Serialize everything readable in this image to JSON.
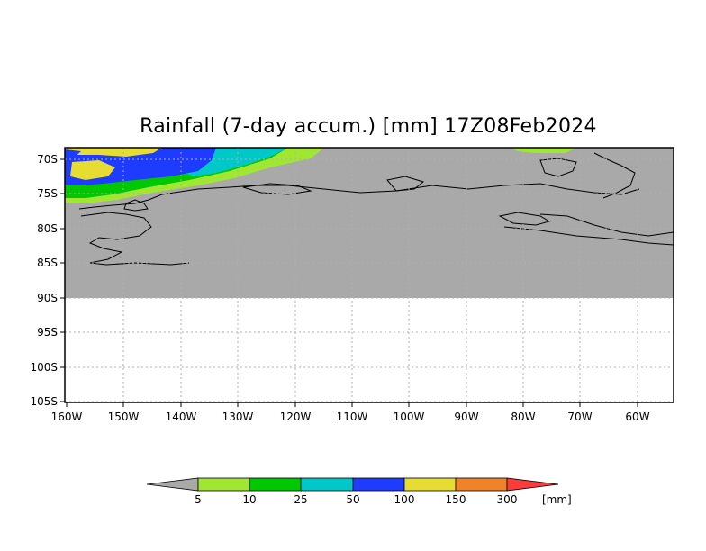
{
  "title": "Rainfall (7-day accum.) [mm] 17Z08Feb2024",
  "map": {
    "lat_labels": [
      "70S",
      "75S",
      "80S",
      "85S",
      "90S",
      "95S",
      "100S",
      "105S"
    ],
    "lon_labels": [
      "160W",
      "150W",
      "140W",
      "130W",
      "120W",
      "110W",
      "100W",
      "90W",
      "80W",
      "70W",
      "60W"
    ],
    "no_data_color": "#a9a9a9"
  },
  "colorbar": {
    "labels": [
      "5",
      "10",
      "25",
      "50",
      "100",
      "150",
      "300"
    ],
    "unit": "[mm]",
    "colors": [
      "#a0e632",
      "#00c800",
      "#00c8c8",
      "#1e3cff",
      "#e6dc32",
      "#f08228",
      "#fa3c3c"
    ],
    "below_color": "#a9a9a9"
  }
}
